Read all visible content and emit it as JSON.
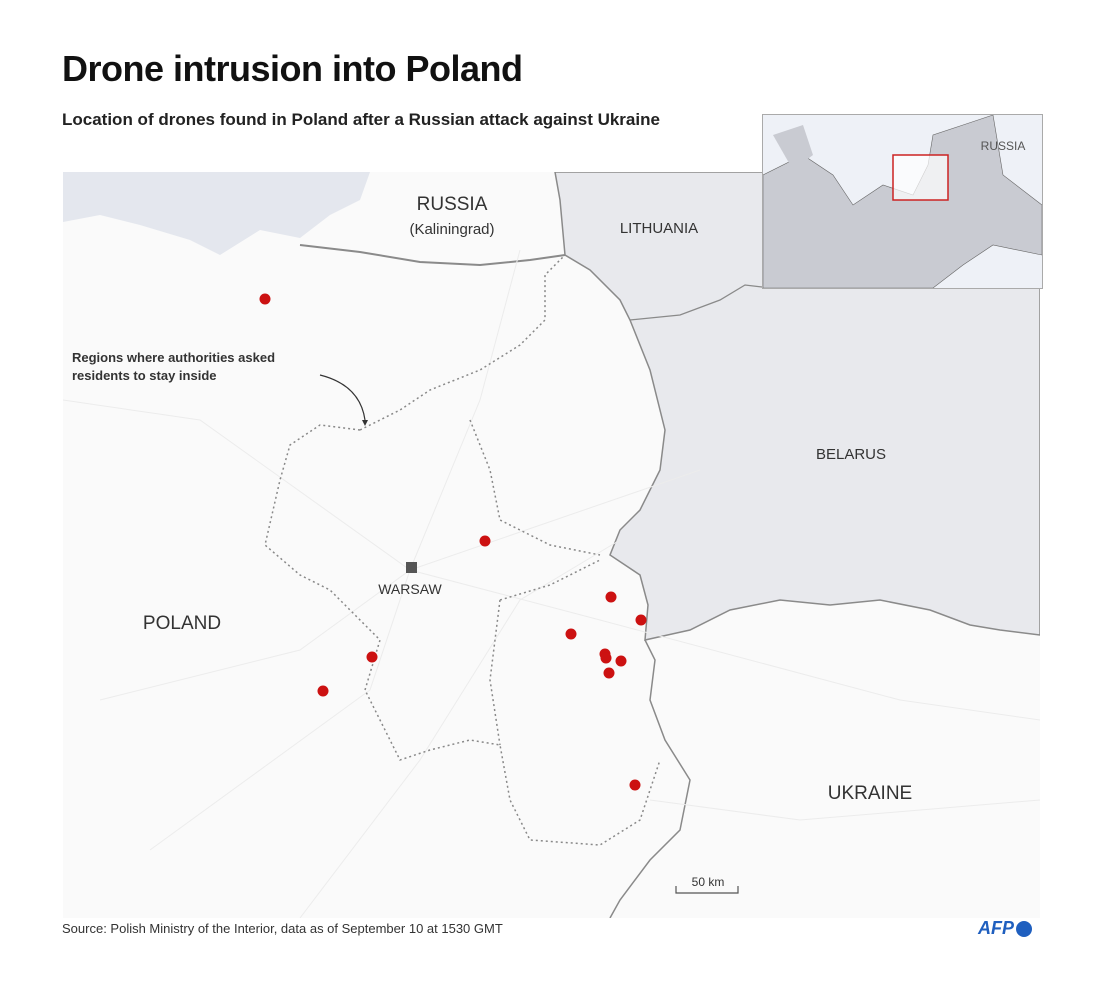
{
  "header": {
    "title": "Drone intrusion into Poland",
    "subtitle": "Location of drones found in Poland after a Russian attack against Ukraine"
  },
  "map": {
    "labels": {
      "russia": "RUSSIA",
      "kaliningrad": "(Kaliningrad)",
      "lithuania": "LITHUANIA",
      "belarus": "BELARUS",
      "poland": "POLAND",
      "ukraine": "UKRAINE",
      "warsaw": "WARSAW"
    },
    "annotation": [
      "Regions where authorities asked",
      "residents to stay inside"
    ],
    "scale_label": "50 km",
    "drone_count": 12,
    "colors": {
      "drone": "#cc1111",
      "neighbor": "#e8e9ed",
      "border": "#8a8a8a",
      "inset_box": "#cc2222"
    }
  },
  "inset": {
    "label_russia": "RUSSIA"
  },
  "footer": {
    "source": "Source: Polish Ministry of the Interior, data as of September 10 at 1530 GMT",
    "logo": "AFP"
  }
}
